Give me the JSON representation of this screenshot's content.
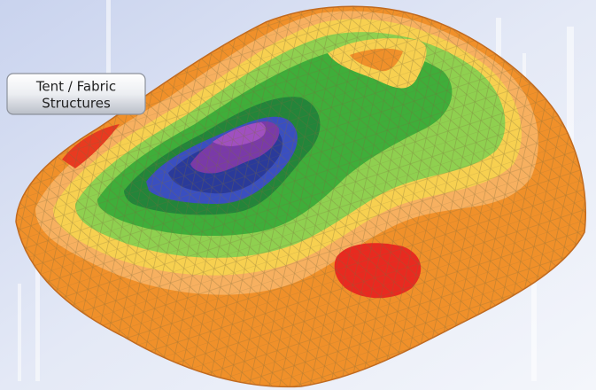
{
  "button": {
    "lines": [
      "Tent / Fabric",
      "Structures"
    ]
  }
}
